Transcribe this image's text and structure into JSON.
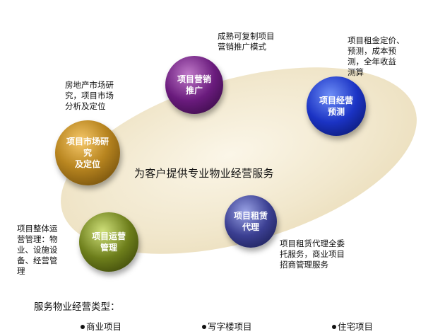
{
  "diagram": {
    "center_label": "为客户提供专业物业经营服务",
    "nodes": [
      {
        "id": "research",
        "label_lines": [
          "项目市场研究",
          "及定位"
        ],
        "color": "#b98620"
      },
      {
        "id": "marketing",
        "label_lines": [
          "项目营销",
          "推广"
        ],
        "color": "#6a1b7d"
      },
      {
        "id": "forecast",
        "label_lines": [
          "项目经营",
          "预测"
        ],
        "color": "#1b33c4"
      },
      {
        "id": "leasing",
        "label_lines": [
          "项目租赁",
          "代理"
        ],
        "color": "#3b3f92"
      },
      {
        "id": "operation",
        "label_lines": [
          "项目运营",
          "管理"
        ],
        "color": "#6d7e1b"
      }
    ],
    "notes": {
      "research": [
        "房地产市场研",
        "究，项目市场",
        "分析及定位"
      ],
      "marketing": [
        "成熟可复制项目",
        "营销推广模式"
      ],
      "forecast": [
        "项目租金定价、",
        "预测，成本预",
        "测，全年收益",
        "测算"
      ],
      "leasing": [
        "项目租赁代理全委",
        "托服务，商业项目",
        "招商管理服务"
      ],
      "operation": [
        "项目整体运",
        "营管理：物",
        "业、设施设",
        "备、经营管",
        "理"
      ]
    }
  },
  "footer": {
    "title": "服务物业经营类型：",
    "items": [
      "商业项目",
      "写字楼项目",
      "住宅项目"
    ]
  }
}
